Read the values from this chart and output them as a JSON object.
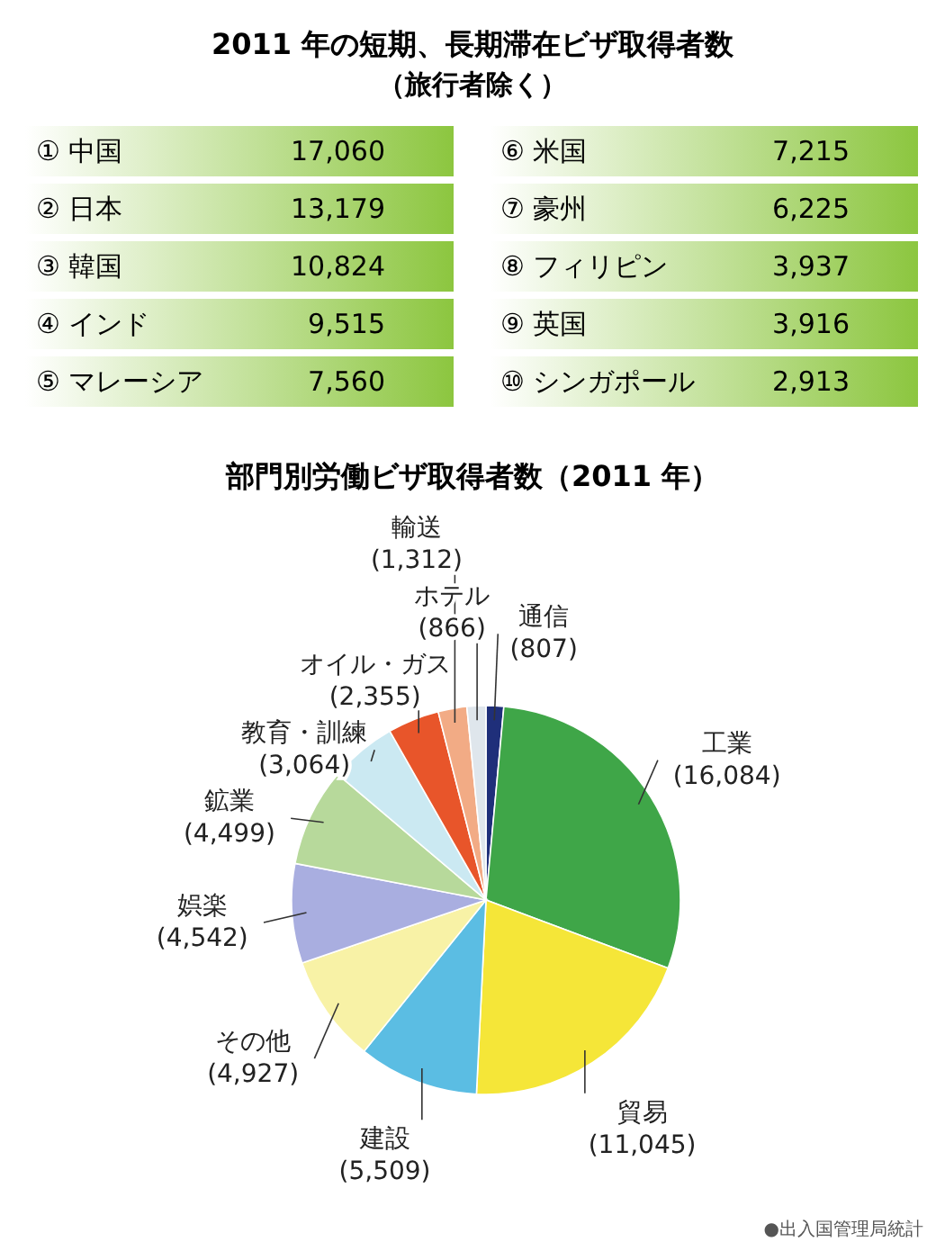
{
  "chart_data": [
    {
      "type": "other",
      "title": "2011 年の短期、長期滞在ビザ取得者数",
      "subtitle": "（旅行者除く）",
      "categories": [
        "① 中国",
        "② 日本",
        "③ 韓国",
        "④ インド",
        "⑤ マレーシア",
        "⑥ 米国",
        "⑦ 豪州",
        "⑧ フィリピン",
        "⑨ 英国",
        "⑩ シンガポール"
      ],
      "value_labels": [
        "17,060",
        "13,179",
        "10,824",
        "9,515",
        "7,560",
        "7,215",
        "6,225",
        "3,937",
        "3,916",
        "2,913"
      ],
      "color": "#8cc63f"
    },
    {
      "type": "pie",
      "title": "部門別労働ビザ取得者数（2011 年）",
      "categories": [
        "通信",
        "工業",
        "貿易",
        "建設",
        "その他",
        "娯楽",
        "鉱業",
        "教育・訓練",
        "オイル・ガス",
        "輸送",
        "ホテル"
      ],
      "values": [
        807,
        16084,
        11045,
        5509,
        4927,
        4542,
        4499,
        3064,
        2355,
        1312,
        866
      ],
      "value_labels": [
        "(807)",
        "(16,084)",
        "(11,045)",
        "(5,509)",
        "(4,927)",
        "(4,542)",
        "(4,499)",
        "(3,064)",
        "(2,355)",
        "(1,312)",
        "(866)"
      ],
      "colors": [
        "#1f2f7a",
        "#3fa648",
        "#f5e638",
        "#5bbde3",
        "#f8f2a6",
        "#a9aee0",
        "#b7d99b",
        "#cbe9f2",
        "#e8552a",
        "#f2ab85",
        "#dfe6ec"
      ],
      "annotations": [
        "●出入国管理局統計"
      ]
    }
  ]
}
